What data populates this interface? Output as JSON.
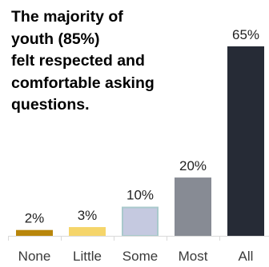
{
  "chart_data": {
    "type": "bar",
    "title_lines": [
      "The majority of",
      "youth (85%)",
      "felt respected and",
      "comfortable asking",
      "questions."
    ],
    "categories": [
      "None",
      "Little",
      "Some",
      "Most",
      "All"
    ],
    "values": [
      2,
      3,
      10,
      20,
      65
    ],
    "value_labels": [
      "2%",
      "3%",
      "10%",
      "20%",
      "65%"
    ],
    "colors": [
      "#B8860B",
      "#F5D56A",
      "#C5C9E0",
      "#878B94",
      "#262B36"
    ],
    "outline_colors": [
      "none",
      "none",
      "#A9C9CC",
      "none",
      "none"
    ],
    "axis_color": "#D9D9D9",
    "ylim": [
      0,
      65
    ],
    "legend": "none",
    "grid": false
  }
}
